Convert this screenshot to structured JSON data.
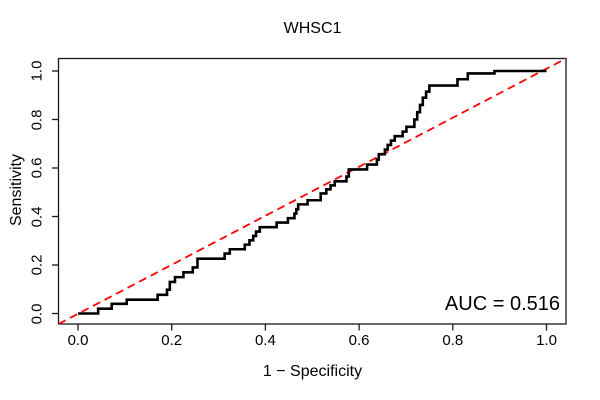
{
  "figure": {
    "title": "WHSC1",
    "xlabel": "1 − Specificity",
    "ylabel": "Sensitivity",
    "annotation": "AUC = 0.516"
  },
  "colors": {
    "curve": "#000000",
    "diagonal": "#FF0000",
    "frame": "#1a1a1a",
    "text": "#000000",
    "background": "#ffffff"
  },
  "chart_data": {
    "type": "line",
    "title": "WHSC1",
    "xlabel": "1 − Specificity",
    "ylabel": "Sensitivity",
    "xlim": [
      -0.04,
      1.04
    ],
    "ylim": [
      -0.04,
      1.04
    ],
    "grid": false,
    "legend": "none",
    "x_ticks": [
      0,
      0.2,
      0.4,
      0.6,
      0.8,
      1.0
    ],
    "x_tick_labels": [
      "0.0",
      "0.2",
      "0.4",
      "0.6",
      "0.8",
      "1.0"
    ],
    "y_ticks": [
      0,
      0.2,
      0.4,
      0.6,
      0.8,
      1.0
    ],
    "y_tick_labels": [
      "0.0",
      "0.2",
      "0.4",
      "0.6",
      "0.8",
      "1.0"
    ],
    "auc": 0.516,
    "annotations": [
      {
        "text": "AUC = 0.516",
        "x": 1.0,
        "y": 0.04,
        "align": "right"
      }
    ],
    "series": [
      {
        "name": "ROC step curve",
        "color": "#000000",
        "style": "solid",
        "linewidth": 2.6,
        "points": [
          [
            0.0,
            0.0
          ],
          [
            0.043,
            0.0
          ],
          [
            0.043,
            0.02
          ],
          [
            0.072,
            0.02
          ],
          [
            0.072,
            0.04
          ],
          [
            0.104,
            0.04
          ],
          [
            0.104,
            0.057
          ],
          [
            0.17,
            0.057
          ],
          [
            0.17,
            0.077
          ],
          [
            0.19,
            0.077
          ],
          [
            0.19,
            0.098
          ],
          [
            0.196,
            0.098
          ],
          [
            0.196,
            0.13
          ],
          [
            0.207,
            0.13
          ],
          [
            0.207,
            0.15
          ],
          [
            0.225,
            0.15
          ],
          [
            0.225,
            0.17
          ],
          [
            0.245,
            0.17
          ],
          [
            0.245,
            0.19
          ],
          [
            0.255,
            0.19
          ],
          [
            0.255,
            0.226
          ],
          [
            0.313,
            0.226
          ],
          [
            0.313,
            0.247
          ],
          [
            0.324,
            0.247
          ],
          [
            0.324,
            0.265
          ],
          [
            0.356,
            0.265
          ],
          [
            0.356,
            0.284
          ],
          [
            0.366,
            0.284
          ],
          [
            0.366,
            0.302
          ],
          [
            0.374,
            0.302
          ],
          [
            0.374,
            0.32
          ],
          [
            0.38,
            0.32
          ],
          [
            0.38,
            0.338
          ],
          [
            0.388,
            0.338
          ],
          [
            0.388,
            0.356
          ],
          [
            0.424,
            0.356
          ],
          [
            0.424,
            0.375
          ],
          [
            0.448,
            0.375
          ],
          [
            0.448,
            0.393
          ],
          [
            0.462,
            0.393
          ],
          [
            0.462,
            0.412
          ],
          [
            0.466,
            0.412
          ],
          [
            0.466,
            0.43
          ],
          [
            0.47,
            0.43
          ],
          [
            0.47,
            0.45
          ],
          [
            0.49,
            0.45
          ],
          [
            0.49,
            0.467
          ],
          [
            0.518,
            0.467
          ],
          [
            0.518,
            0.495
          ],
          [
            0.53,
            0.495
          ],
          [
            0.53,
            0.512
          ],
          [
            0.539,
            0.512
          ],
          [
            0.539,
            0.528
          ],
          [
            0.548,
            0.528
          ],
          [
            0.548,
            0.545
          ],
          [
            0.573,
            0.545
          ],
          [
            0.573,
            0.565
          ],
          [
            0.578,
            0.565
          ],
          [
            0.578,
            0.594
          ],
          [
            0.617,
            0.594
          ],
          [
            0.617,
            0.614
          ],
          [
            0.638,
            0.614
          ],
          [
            0.638,
            0.635
          ],
          [
            0.642,
            0.635
          ],
          [
            0.642,
            0.657
          ],
          [
            0.655,
            0.657
          ],
          [
            0.655,
            0.676
          ],
          [
            0.661,
            0.676
          ],
          [
            0.661,
            0.695
          ],
          [
            0.668,
            0.695
          ],
          [
            0.668,
            0.713
          ],
          [
            0.676,
            0.713
          ],
          [
            0.676,
            0.731
          ],
          [
            0.693,
            0.731
          ],
          [
            0.693,
            0.75
          ],
          [
            0.701,
            0.75
          ],
          [
            0.701,
            0.77
          ],
          [
            0.718,
            0.77
          ],
          [
            0.718,
            0.8
          ],
          [
            0.724,
            0.8
          ],
          [
            0.724,
            0.83
          ],
          [
            0.73,
            0.83
          ],
          [
            0.73,
            0.86
          ],
          [
            0.736,
            0.86
          ],
          [
            0.736,
            0.89
          ],
          [
            0.743,
            0.89
          ],
          [
            0.743,
            0.915
          ],
          [
            0.75,
            0.915
          ],
          [
            0.75,
            0.94
          ],
          [
            0.81,
            0.94
          ],
          [
            0.81,
            0.966
          ],
          [
            0.832,
            0.966
          ],
          [
            0.832,
            0.99
          ],
          [
            0.889,
            0.99
          ],
          [
            0.889,
            1.0
          ],
          [
            1.0,
            1.0
          ]
        ]
      },
      {
        "name": "chance diagonal",
        "color": "#FF0000",
        "style": "dashed",
        "linewidth": 1.8,
        "points": [
          [
            0.0,
            0.0
          ],
          [
            1.0,
            1.0
          ]
        ]
      }
    ]
  }
}
